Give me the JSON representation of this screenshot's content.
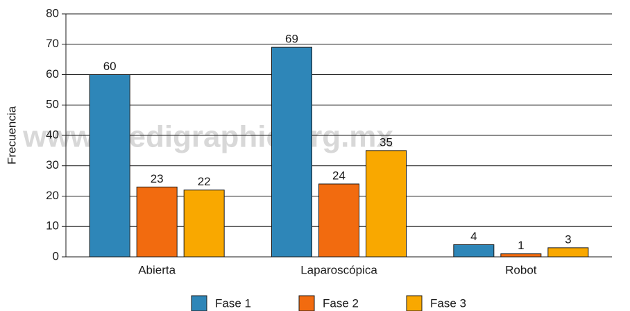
{
  "chart_data": {
    "type": "bar",
    "y_label": "Frecuencia",
    "watermark": "www.medigraphic.org.mx",
    "categories": [
      "Abierta",
      "Laparoscópica",
      "Robot"
    ],
    "series": [
      {
        "name": "Fase 1",
        "color": "#2e86b8",
        "values": [
          60,
          69,
          4
        ]
      },
      {
        "name": "Fase 2",
        "color": "#f26b0f",
        "values": [
          23,
          24,
          1
        ]
      },
      {
        "name": "Fase 3",
        "color": "#f9a800",
        "values": [
          22,
          35,
          3
        ]
      }
    ],
    "ylim": [
      0,
      80
    ],
    "yticks": [
      0,
      10,
      20,
      30,
      40,
      50,
      60,
      70,
      80
    ],
    "grid": true,
    "legend": "bottom"
  }
}
